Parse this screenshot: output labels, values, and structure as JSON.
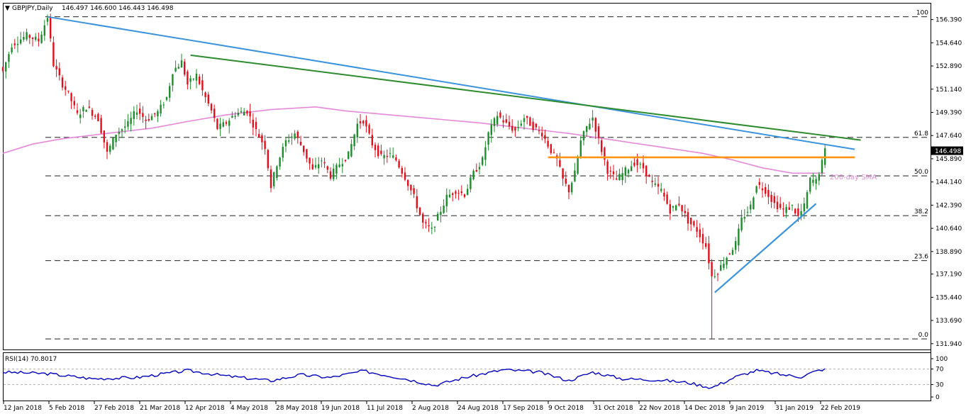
{
  "header": {
    "symbol": "GBPJPY,Daily",
    "ohlc": "146.497 146.600 146.443 146.498"
  },
  "indicator": {
    "label": "RSI(14) 70.8017",
    "levels": [
      "100",
      "70",
      "30",
      "0"
    ]
  },
  "annotations": {
    "sma_label": "200-day SMA"
  },
  "colors": {
    "bull": "#1f8c2e",
    "bear": "#e0101c",
    "sma": "#e589d8",
    "trend_blue": "#3a93dc",
    "trend_green": "#2e8b2e",
    "resistance": "#ff9512",
    "rsi": "#0000bb"
  },
  "chart_data": {
    "type": "candlestick",
    "price_ticks": [
      "156.390",
      "154.640",
      "152.890",
      "151.140",
      "149.390",
      "147.640",
      "145.890",
      "144.140",
      "142.390",
      "140.640",
      "138.890",
      "137.190",
      "135.440",
      "133.690",
      "131.940"
    ],
    "price_range": [
      131.5,
      157.6
    ],
    "last_price": "146.498",
    "date_labels": [
      "12 Jan 2018",
      "5 Feb 2018",
      "27 Feb 2018",
      "21 Mar 2018",
      "12 Apr 2018",
      "4 May 2018",
      "28 May 2018",
      "19 Jun 2018",
      "11 Jul 2018",
      "2 Aug 2018",
      "24 Aug 2018",
      "17 Sep 2018",
      "9 Oct 2018",
      "31 Oct 2018",
      "22 Nov 2018",
      "14 Dec 2018",
      "9 Jan 2019",
      "31 Jan 2019",
      "22 Feb 2019"
    ],
    "fib_levels": [
      {
        "label": "100",
        "price": 156.6
      },
      {
        "label": "61.8",
        "price": 147.5
      },
      {
        "label": "50.0",
        "price": 144.6
      },
      {
        "label": "38.2",
        "price": 141.6
      },
      {
        "label": "23.6",
        "price": 138.2
      },
      {
        "label": "0.0",
        "price": 132.3
      }
    ],
    "price_path": [
      {
        "x": 0,
        "p": 152.5
      },
      {
        "x": 3,
        "p": 154.5
      },
      {
        "x": 8,
        "p": 155.2
      },
      {
        "x": 12,
        "p": 154.8
      },
      {
        "x": 15,
        "p": 156.6
      },
      {
        "x": 17,
        "p": 153.0
      },
      {
        "x": 20,
        "p": 151.5
      },
      {
        "x": 22,
        "p": 150.8
      },
      {
        "x": 25,
        "p": 149.2
      },
      {
        "x": 28,
        "p": 149.8
      },
      {
        "x": 32,
        "p": 148.9
      },
      {
        "x": 35,
        "p": 146.3
      },
      {
        "x": 38,
        "p": 147.8
      },
      {
        "x": 42,
        "p": 148.5
      },
      {
        "x": 45,
        "p": 149.6
      },
      {
        "x": 48,
        "p": 148.8
      },
      {
        "x": 52,
        "p": 149.4
      },
      {
        "x": 55,
        "p": 150.5
      },
      {
        "x": 57,
        "p": 152.5
      },
      {
        "x": 60,
        "p": 153.2
      },
      {
        "x": 62,
        "p": 151.5
      },
      {
        "x": 65,
        "p": 152.2
      },
      {
        "x": 67,
        "p": 151.0
      },
      {
        "x": 70,
        "p": 149.5
      },
      {
        "x": 72,
        "p": 148.2
      },
      {
        "x": 75,
        "p": 148.6
      },
      {
        "x": 78,
        "p": 149.3
      },
      {
        "x": 82,
        "p": 149.5
      },
      {
        "x": 85,
        "p": 148.0
      },
      {
        "x": 88,
        "p": 146.8
      },
      {
        "x": 90,
        "p": 143.8
      },
      {
        "x": 92,
        "p": 145.5
      },
      {
        "x": 95,
        "p": 147.2
      },
      {
        "x": 98,
        "p": 147.8
      },
      {
        "x": 101,
        "p": 146.5
      },
      {
        "x": 104,
        "p": 145.0
      },
      {
        "x": 107,
        "p": 145.8
      },
      {
        "x": 110,
        "p": 144.6
      },
      {
        "x": 113,
        "p": 145.5
      },
      {
        "x": 116,
        "p": 146.2
      },
      {
        "x": 119,
        "p": 148.5
      },
      {
        "x": 121,
        "p": 148.8
      },
      {
        "x": 124,
        "p": 147.0
      },
      {
        "x": 127,
        "p": 146.0
      },
      {
        "x": 130,
        "p": 146.2
      },
      {
        "x": 132,
        "p": 145.8
      },
      {
        "x": 135,
        "p": 144.5
      },
      {
        "x": 138,
        "p": 143.0
      },
      {
        "x": 141,
        "p": 141.0
      },
      {
        "x": 144,
        "p": 140.5
      },
      {
        "x": 146,
        "p": 141.5
      },
      {
        "x": 149,
        "p": 143.0
      },
      {
        "x": 152,
        "p": 143.5
      },
      {
        "x": 155,
        "p": 143.2
      },
      {
        "x": 158,
        "p": 144.8
      },
      {
        "x": 161,
        "p": 145.8
      },
      {
        "x": 163,
        "p": 147.8
      },
      {
        "x": 166,
        "p": 149.2
      },
      {
        "x": 169,
        "p": 148.5
      },
      {
        "x": 172,
        "p": 148.0
      },
      {
        "x": 175,
        "p": 149.0
      },
      {
        "x": 178,
        "p": 148.3
      },
      {
        "x": 181,
        "p": 147.8
      },
      {
        "x": 184,
        "p": 146.5
      },
      {
        "x": 186,
        "p": 145.8
      },
      {
        "x": 188,
        "p": 144.3
      },
      {
        "x": 190,
        "p": 143.5
      },
      {
        "x": 192,
        "p": 144.8
      },
      {
        "x": 194,
        "p": 147.2
      },
      {
        "x": 196,
        "p": 148.3
      },
      {
        "x": 198,
        "p": 149.0
      },
      {
        "x": 200,
        "p": 147.3
      },
      {
        "x": 203,
        "p": 145.0
      },
      {
        "x": 206,
        "p": 144.3
      },
      {
        "x": 209,
        "p": 145.0
      },
      {
        "x": 212,
        "p": 145.6
      },
      {
        "x": 215,
        "p": 145.2
      },
      {
        "x": 218,
        "p": 144.0
      },
      {
        "x": 221,
        "p": 143.5
      },
      {
        "x": 224,
        "p": 142.0
      },
      {
        "x": 227,
        "p": 142.5
      },
      {
        "x": 230,
        "p": 141.2
      },
      {
        "x": 233,
        "p": 140.5
      },
      {
        "x": 236,
        "p": 139.3
      },
      {
        "x": 238,
        "p": 137.0
      },
      {
        "x": 240,
        "p": 137.4
      },
      {
        "x": 243,
        "p": 138.5
      },
      {
        "x": 246,
        "p": 139.5
      },
      {
        "x": 248,
        "p": 141.3
      },
      {
        "x": 251,
        "p": 142.3
      },
      {
        "x": 253,
        "p": 144.0
      },
      {
        "x": 256,
        "p": 143.5
      },
      {
        "x": 259,
        "p": 142.5
      },
      {
        "x": 262,
        "p": 142.0
      },
      {
        "x": 265,
        "p": 142.3
      },
      {
        "x": 267,
        "p": 141.5
      },
      {
        "x": 269,
        "p": 142.3
      },
      {
        "x": 271,
        "p": 144.3
      },
      {
        "x": 273,
        "p": 144.2
      },
      {
        "x": 275,
        "p": 145.6
      },
      {
        "x": 276,
        "p": 146.5
      }
    ],
    "sma_path": [
      {
        "x": 0,
        "p": 146.3
      },
      {
        "x": 10,
        "p": 147.0
      },
      {
        "x": 20,
        "p": 147.4
      },
      {
        "x": 35,
        "p": 147.8
      },
      {
        "x": 50,
        "p": 148.2
      },
      {
        "x": 62,
        "p": 148.7
      },
      {
        "x": 75,
        "p": 149.2
      },
      {
        "x": 90,
        "p": 149.6
      },
      {
        "x": 105,
        "p": 149.8
      },
      {
        "x": 115,
        "p": 149.5
      },
      {
        "x": 130,
        "p": 149.2
      },
      {
        "x": 145,
        "p": 148.9
      },
      {
        "x": 160,
        "p": 148.6
      },
      {
        "x": 175,
        "p": 148.2
      },
      {
        "x": 190,
        "p": 147.8
      },
      {
        "x": 205,
        "p": 147.3
      },
      {
        "x": 220,
        "p": 146.8
      },
      {
        "x": 235,
        "p": 146.3
      },
      {
        "x": 245,
        "p": 145.8
      },
      {
        "x": 255,
        "p": 145.2
      },
      {
        "x": 265,
        "p": 144.8
      },
      {
        "x": 276,
        "p": 144.8
      }
    ],
    "trend_lines": [
      {
        "name": "blue-downtrend",
        "x1": 15,
        "p1": 156.6,
        "x2": 286,
        "p2": 146.6
      },
      {
        "name": "green-downtrend",
        "x1": 63,
        "p1": 153.7,
        "x2": 288,
        "p2": 147.3
      },
      {
        "name": "orange-resistance",
        "x1": 183,
        "p1": 146.0,
        "x2": 286,
        "p2": 146.0
      },
      {
        "name": "blue-uptrend",
        "x1": 239,
        "p1": 135.8,
        "x2": 273,
        "p2": 142.5
      }
    ],
    "rsi_path": [
      {
        "x": 0,
        "p": 62
      },
      {
        "x": 15,
        "p": 58
      },
      {
        "x": 30,
        "p": 45
      },
      {
        "x": 45,
        "p": 48
      },
      {
        "x": 62,
        "p": 66
      },
      {
        "x": 75,
        "p": 52
      },
      {
        "x": 90,
        "p": 40
      },
      {
        "x": 100,
        "p": 55
      },
      {
        "x": 110,
        "p": 48
      },
      {
        "x": 121,
        "p": 65
      },
      {
        "x": 135,
        "p": 45
      },
      {
        "x": 145,
        "p": 28
      },
      {
        "x": 155,
        "p": 48
      },
      {
        "x": 168,
        "p": 68
      },
      {
        "x": 180,
        "p": 62
      },
      {
        "x": 190,
        "p": 40
      },
      {
        "x": 198,
        "p": 62
      },
      {
        "x": 208,
        "p": 45
      },
      {
        "x": 220,
        "p": 42
      },
      {
        "x": 230,
        "p": 35
      },
      {
        "x": 238,
        "p": 22
      },
      {
        "x": 246,
        "p": 50
      },
      {
        "x": 253,
        "p": 66
      },
      {
        "x": 262,
        "p": 55
      },
      {
        "x": 268,
        "p": 50
      },
      {
        "x": 272,
        "p": 62
      },
      {
        "x": 276,
        "p": 70.8
      }
    ],
    "x_range": [
      0,
      291
    ]
  }
}
